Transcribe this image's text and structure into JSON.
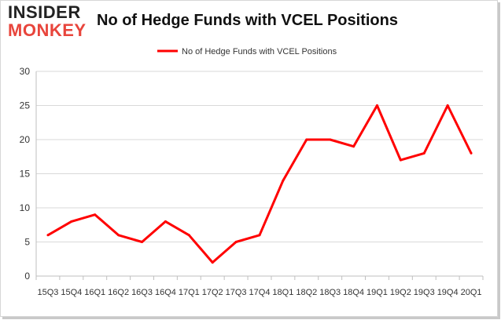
{
  "logo": {
    "top": "INSIDER",
    "bottom": "MONKEY"
  },
  "chart_data": {
    "type": "line",
    "title": "No of Hedge Funds with VCEL Positions",
    "xlabel": "",
    "ylabel": "",
    "ylim": [
      0,
      30
    ],
    "yticks": [
      0,
      5,
      10,
      15,
      20,
      25,
      30
    ],
    "grid": true,
    "legend": "top-center",
    "categories": [
      "15Q3",
      "15Q4",
      "16Q1",
      "16Q2",
      "16Q3",
      "16Q4",
      "17Q1",
      "17Q2",
      "17Q3",
      "17Q4",
      "18Q1",
      "18Q2",
      "18Q3",
      "18Q4",
      "19Q1",
      "19Q2",
      "19Q3",
      "19Q4",
      "20Q1"
    ],
    "series": [
      {
        "name": "No of Hedge Funds with VCEL Positions",
        "color": "#ff0000",
        "values": [
          6,
          8,
          9,
          6,
          5,
          8,
          6,
          2,
          5,
          6,
          14,
          20,
          20,
          19,
          25,
          17,
          18,
          25,
          18
        ]
      }
    ]
  }
}
